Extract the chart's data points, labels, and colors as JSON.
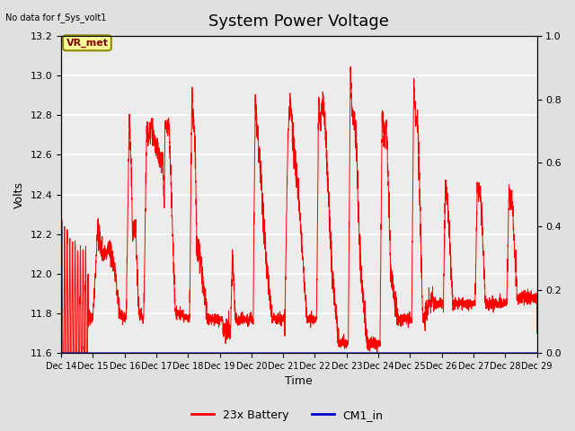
{
  "title": "System Power Voltage",
  "top_left_text": "No data for f_Sys_volt1",
  "ylabel_left": "Volts",
  "xlabel": "Time",
  "ylim_left": [
    11.6,
    13.2
  ],
  "ylim_right": [
    0.0,
    1.0
  ],
  "yticks_left": [
    11.6,
    11.8,
    12.0,
    12.2,
    12.4,
    12.6,
    12.8,
    13.0,
    13.2
  ],
  "yticks_right": [
    0.0,
    0.2,
    0.4,
    0.6,
    0.8,
    1.0
  ],
  "xtick_labels": [
    "Dec 14",
    "Dec 15",
    "Dec 16",
    "Dec 17",
    "Dec 18",
    "Dec 19",
    "Dec 20",
    "Dec 21",
    "Dec 22",
    "Dec 23",
    "Dec 24",
    "Dec 25",
    "Dec 26",
    "Dec 27",
    "Dec 28",
    "Dec 29"
  ],
  "line_color_battery": "#ff0000",
  "line_color_cm1": "#0000cd",
  "legend_labels": [
    "23x Battery",
    "CM1_in"
  ],
  "legend_colors": [
    "#ff0000",
    "#0000cd"
  ],
  "background_color": "#e0e0e0",
  "plot_bg_color": "#ececec",
  "annotation_text": "VR_met",
  "annotation_bg": "#ffff99",
  "annotation_border": "#888800",
  "title_fontsize": 13,
  "label_fontsize": 9,
  "tick_fontsize": 8,
  "figwidth": 6.4,
  "figheight": 4.8,
  "dpi": 100
}
